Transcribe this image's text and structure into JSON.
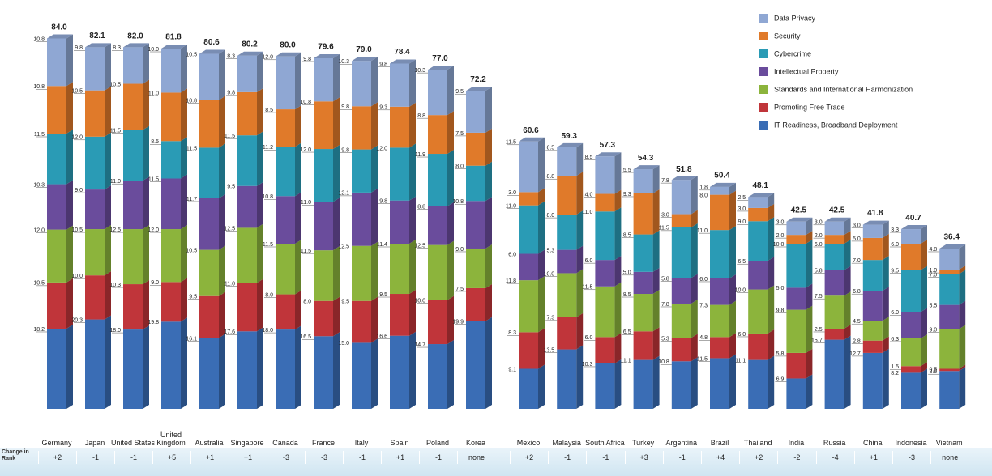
{
  "chart_data": {
    "type": "stacked-bar-3d",
    "categories": [
      "Germany",
      "Japan",
      "United States",
      "United Kingdom",
      "Australia",
      "Singapore",
      "Canada",
      "France",
      "Italy",
      "Spain",
      "Poland",
      "Korea",
      "Mexico",
      "Malaysia",
      "South Africa",
      "Turkey",
      "Argentina",
      "Brazil",
      "Thailand",
      "India",
      "Russia",
      "China",
      "Indonesia",
      "Vietnam"
    ],
    "totals": [
      84.0,
      82.1,
      82.0,
      81.8,
      80.6,
      80.2,
      80.0,
      79.6,
      79.0,
      78.4,
      77.0,
      72.2,
      60.6,
      59.3,
      57.3,
      54.3,
      51.8,
      50.4,
      48.1,
      42.5,
      42.5,
      41.8,
      40.7,
      36.4
    ],
    "total_labels": [
      "84.0",
      "82.1",
      "82.0",
      "81.8",
      "80.6",
      "80.2",
      "80.0",
      "79.6",
      "79.0",
      "78.4",
      "77.0",
      "72.2",
      "60.6",
      "59.3",
      "57.3",
      "54.3",
      "51.8",
      "50.4",
      "48.1",
      "42.5",
      "42.5",
      "41.8",
      "40.7",
      "36.4"
    ],
    "rank_label": "Change in Rank",
    "rank_changes": [
      "+2",
      "-1",
      "-1",
      "+5",
      "+1",
      "+1",
      "-3",
      "-3",
      "-1",
      "+1",
      "-1",
      "none",
      "+2",
      "-1",
      "-1",
      "+3",
      "-1",
      "+4",
      "+2",
      "-2",
      "-4",
      "+1",
      "-3",
      "none"
    ],
    "series": [
      {
        "name": "Data Privacy",
        "color": "#8fa7d3",
        "values": [
          10.8,
          9.8,
          8.3,
          10.0,
          10.5,
          8.3,
          12.0,
          9.8,
          10.3,
          9.8,
          10.3,
          9.5,
          11.5,
          6.5,
          8.5,
          5.5,
          7.8,
          1.8,
          2.5,
          3.0,
          3.0,
          3.0,
          3.3,
          4.8
        ],
        "value_labels": [
          "10.8",
          "9.8",
          "8.3",
          "10.0",
          "10.5",
          "8.3",
          "12.0",
          "9.8",
          "10.3",
          "9.8",
          "10.3",
          "9.5",
          "11.5",
          "6.5",
          "8.5",
          "5.5",
          "7.8",
          "1.8",
          "2.5",
          "3.0",
          "3.0",
          "3.0",
          "3.3",
          "4.8"
        ]
      },
      {
        "name": "Security",
        "color": "#e07a2a",
        "values": [
          10.8,
          10.5,
          10.5,
          11.0,
          10.8,
          9.8,
          8.5,
          10.8,
          9.8,
          9.3,
          8.8,
          7.5,
          3.0,
          8.8,
          4.0,
          9.3,
          3.0,
          8.0,
          3.0,
          2.0,
          2.0,
          5.0,
          6.0,
          1.0
        ],
        "value_labels": [
          "10.8",
          "10.5",
          "10.5",
          "11.0",
          "10.8",
          "9.8",
          "8.5",
          "10.8",
          "9.8",
          "9.3",
          "8.8",
          "7.5",
          "3.0",
          "8.8",
          "4.0",
          "9.3",
          "3.0",
          "8.0",
          "3.0",
          "2.0",
          "2.0",
          "5.0",
          "6.0",
          "1.0"
        ]
      },
      {
        "name": "Cybercrime",
        "color": "#2a9bb5",
        "values": [
          11.5,
          12.0,
          11.5,
          8.5,
          11.5,
          11.5,
          11.2,
          12.0,
          9.8,
          12.0,
          11.9,
          8.0,
          11.0,
          8.0,
          11.0,
          8.5,
          11.5,
          11.0,
          9.0,
          10.0,
          6.0,
          7.0,
          9.5,
          7.0
        ],
        "value_labels": [
          "11.5",
          "12.0",
          "11.5",
          "8.5",
          "11.5",
          "11.5",
          "11.2",
          "12.0",
          "9.8",
          "12.0",
          "11.9",
          "8.0",
          "11.0",
          "8.0",
          "11.0",
          "8.5",
          "11.5",
          "11.0",
          "9.0",
          "10.0",
          "6.0",
          "7.0",
          "9.5",
          "7.0"
        ]
      },
      {
        "name": "Intellectual Property",
        "color": "#6a4c9c",
        "values": [
          10.3,
          9.0,
          11.0,
          11.5,
          11.7,
          9.5,
          10.8,
          11.0,
          12.1,
          9.8,
          8.8,
          10.8,
          6.0,
          5.3,
          6.0,
          5.0,
          5.8,
          6.0,
          6.5,
          5.0,
          5.8,
          6.8,
          6.0,
          5.5
        ],
        "value_labels": [
          "10.3",
          "9.0",
          "11.0",
          "11.5",
          "11.7",
          "9.5",
          "10.8",
          "11.0",
          "12.1",
          "9.8",
          "8.8",
          "10.8",
          "6.0",
          "5.3",
          "6.0",
          "5.0",
          "5.8",
          "6.0",
          "6.5",
          "5.0",
          "5.8",
          "6.8",
          "6.0",
          "5.5"
        ]
      },
      {
        "name": "Standards and International Harmonization",
        "color": "#8cb43c",
        "values": [
          12.0,
          10.5,
          12.5,
          12.0,
          10.5,
          12.5,
          11.5,
          11.5,
          12.5,
          11.4,
          12.5,
          9.0,
          11.8,
          10.0,
          11.5,
          8.5,
          7.8,
          7.3,
          10.0,
          9.8,
          7.5,
          4.5,
          6.3,
          9.0
        ],
        "value_labels": [
          "12.0",
          "10.5",
          "12.5",
          "12.0",
          "10.5",
          "12.5",
          "11.5",
          "11.5",
          "12.5",
          "11.4",
          "12.5",
          "9.0",
          "11.8",
          "10.0",
          "11.5",
          "8.5",
          "7.8",
          "7.3",
          "10.0",
          "9.8",
          "7.5",
          "4.5",
          "6.3",
          "9.0"
        ]
      },
      {
        "name": "Promoting Free Trade",
        "color": "#c0353a",
        "values": [
          10.5,
          10.0,
          10.3,
          9.0,
          9.5,
          11.0,
          8.0,
          8.0,
          9.5,
          9.5,
          10.0,
          7.5,
          8.3,
          7.3,
          6.0,
          6.5,
          5.3,
          4.8,
          6.0,
          5.8,
          2.5,
          2.8,
          1.5,
          0.5
        ],
        "value_labels": [
          "10.5",
          "10.0",
          "10.3",
          "9.0",
          "9.5",
          "11.0",
          "8.0",
          "8.0",
          "9.5",
          "9.5",
          "10.0",
          "7.5",
          "8.3",
          "7.3",
          "6.0",
          "6.5",
          "5.3",
          "4.8",
          "6.0",
          "5.8",
          "2.5",
          "2.8",
          "1.5",
          "0.5"
        ]
      },
      {
        "name": "IT Readiness, Broadband Deployment",
        "color": "#3a6db5",
        "values": [
          18.2,
          20.3,
          18.0,
          19.8,
          16.1,
          17.6,
          18.0,
          16.5,
          15.0,
          16.6,
          14.7,
          19.9,
          9.1,
          13.5,
          10.3,
          11.1,
          10.8,
          11.5,
          11.1,
          6.9,
          15.7,
          12.7,
          8.2,
          8.6
        ],
        "value_labels": [
          "18.2",
          "20.3",
          "18.0",
          "19.8",
          "16.1",
          "17.6",
          "18.0",
          "16.5",
          "15.0",
          "16.6",
          "14.7",
          "19.9",
          "9.1",
          "13.5",
          "10.3",
          "11.1",
          "10.8",
          "11.5",
          "11.1",
          "6.9",
          "15.7",
          "12.7",
          "8.2",
          "8.6"
        ]
      }
    ],
    "legend": "top-right"
  }
}
